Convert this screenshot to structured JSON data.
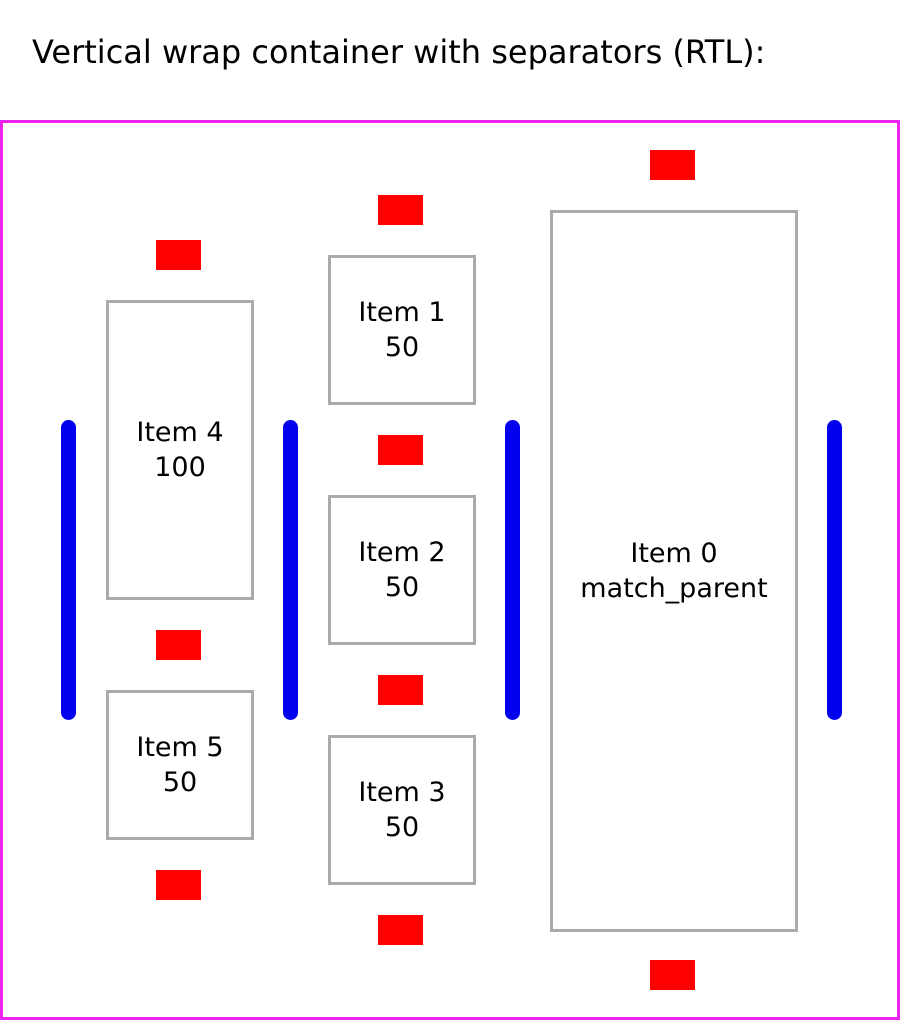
{
  "title": "Vertical wrap container with separators (RTL):",
  "colors": {
    "container_border": "#ee22ee",
    "item_border": "#aaaaaa",
    "item_separator": "#ff0000",
    "line_separator": "#0000ee"
  },
  "items": [
    {
      "name": "Item 0",
      "size": "match_parent"
    },
    {
      "name": "Item 1",
      "size": "50"
    },
    {
      "name": "Item 2",
      "size": "50"
    },
    {
      "name": "Item 3",
      "size": "50"
    },
    {
      "name": "Item 4",
      "size": "100"
    },
    {
      "name": "Item 5",
      "size": "50"
    }
  ]
}
